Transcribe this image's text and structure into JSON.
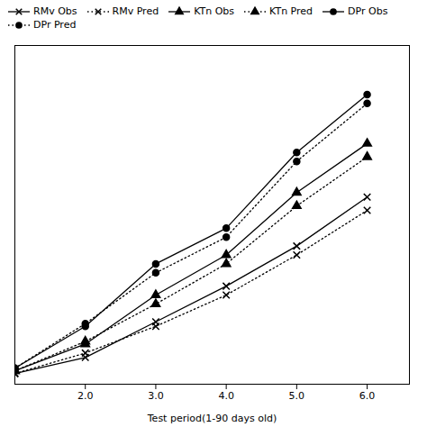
{
  "chart_data": {
    "type": "line",
    "x": [
      1,
      2,
      3,
      4,
      5,
      6
    ],
    "series": [
      {
        "name": "RMv Obs",
        "color": "#000000",
        "marker": "x",
        "line_style": "solid",
        "values": [
          3.2,
          5.0,
          9.0,
          13.0,
          17.5,
          23.0
        ]
      },
      {
        "name": "RMv Pred",
        "color": "#000000",
        "marker": "x",
        "line_style": "dotted",
        "values": [
          3.2,
          5.5,
          8.5,
          12.0,
          16.5,
          21.5
        ]
      },
      {
        "name": "KTn Obs",
        "color": "#000000",
        "marker": "triangle",
        "line_style": "solid",
        "values": [
          3.5,
          6.5,
          12.0,
          16.5,
          23.5,
          29.0
        ]
      },
      {
        "name": "KTn Pred",
        "color": "#000000",
        "marker": "triangle",
        "line_style": "dotted",
        "values": [
          3.5,
          6.8,
          11.0,
          15.5,
          22.0,
          27.5
        ]
      },
      {
        "name": "DPr Obs",
        "color": "#000000",
        "marker": "circle",
        "line_style": "solid",
        "values": [
          3.8,
          8.5,
          15.5,
          19.5,
          28.0,
          34.5
        ]
      },
      {
        "name": "DPr Pred",
        "color": "#000000",
        "marker": "circle",
        "line_style": "dotted",
        "values": [
          3.8,
          8.8,
          14.5,
          18.5,
          27.0,
          33.5
        ]
      }
    ],
    "xlabel": "Test period(1-90 days old)",
    "xlim": [
      1,
      6.6
    ],
    "xticks": [
      2,
      3,
      4,
      5,
      6
    ],
    "ylim": [
      2.0,
      40.0
    ],
    "tick_labels": "x",
    "grid": false,
    "legend": "top"
  }
}
